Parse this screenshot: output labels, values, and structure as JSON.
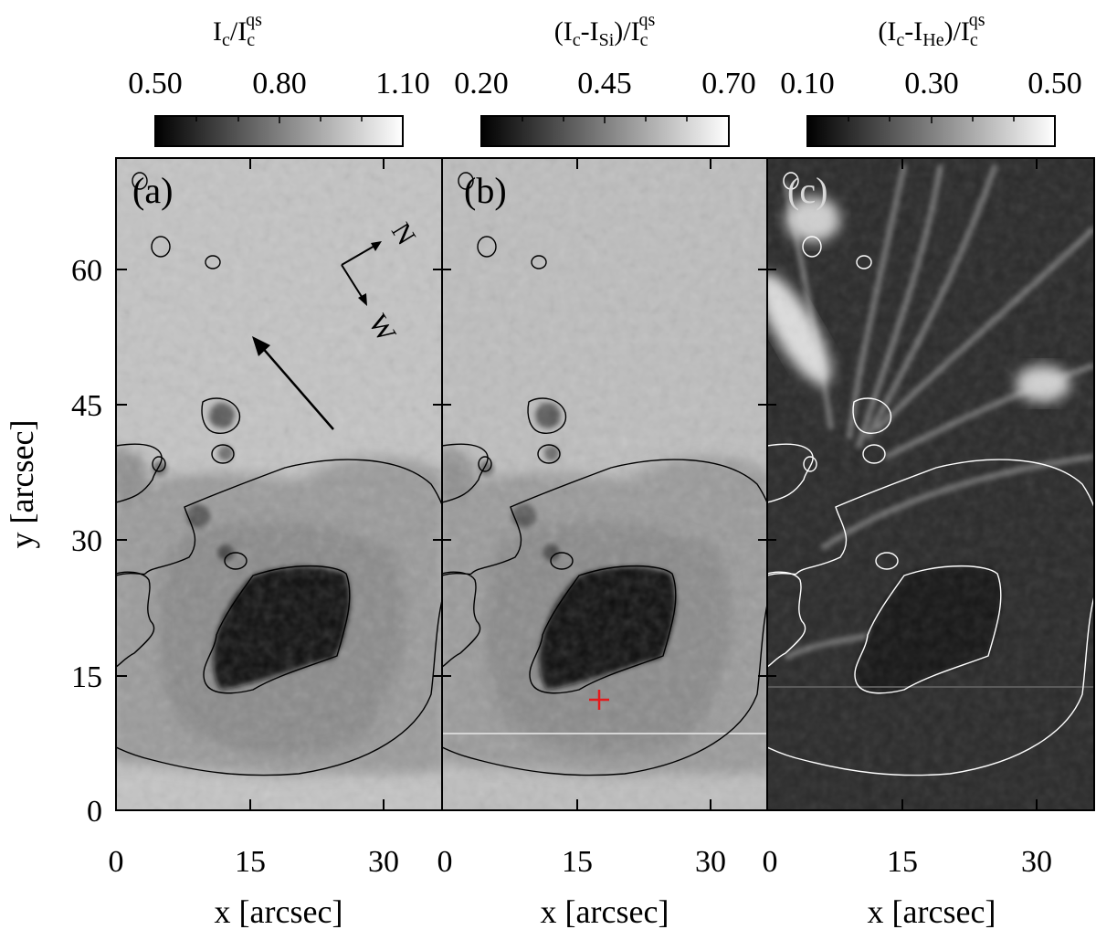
{
  "figure": {
    "panels": [
      {
        "panel_label": "(a)",
        "colorbar": {
          "title_main": "I",
          "title_main_sub": "c",
          "title_sep": "/",
          "title_den": "I",
          "title_den_sub": "c",
          "title_den_sup": "qs",
          "ticks": [
            "0.50",
            "0.80",
            "1.10"
          ]
        },
        "compass": {
          "north": "N",
          "west": "W"
        }
      },
      {
        "panel_label": "(b)",
        "colorbar": {
          "title_main": "(I",
          "title_main_sub": "c",
          "title_mid": "-I",
          "title_mid_sub": "Si",
          "title_close": ")/I",
          "title_den_sub": "c",
          "title_den_sup": "qs",
          "ticks": [
            "0.20",
            "0.45",
            "0.70"
          ]
        }
      },
      {
        "panel_label": "(c)",
        "colorbar": {
          "title_main": "(I",
          "title_main_sub": "c",
          "title_mid": "-I",
          "title_mid_sub": "He",
          "title_close": ")/I",
          "title_den_sub": "c",
          "title_den_sup": "qs",
          "ticks": [
            "0.10",
            "0.30",
            "0.50"
          ]
        }
      }
    ],
    "y_axis": {
      "label": "y [arcsec]",
      "ticks": [
        "0",
        "15",
        "30",
        "45",
        "60"
      ]
    },
    "x_axis": {
      "label": "x [arcsec]",
      "ticks": [
        "0",
        "15",
        "30"
      ]
    }
  },
  "colors": {
    "contour_dark": "#000000",
    "contour_light": "#ffffff",
    "marker": "#e41a1c"
  }
}
